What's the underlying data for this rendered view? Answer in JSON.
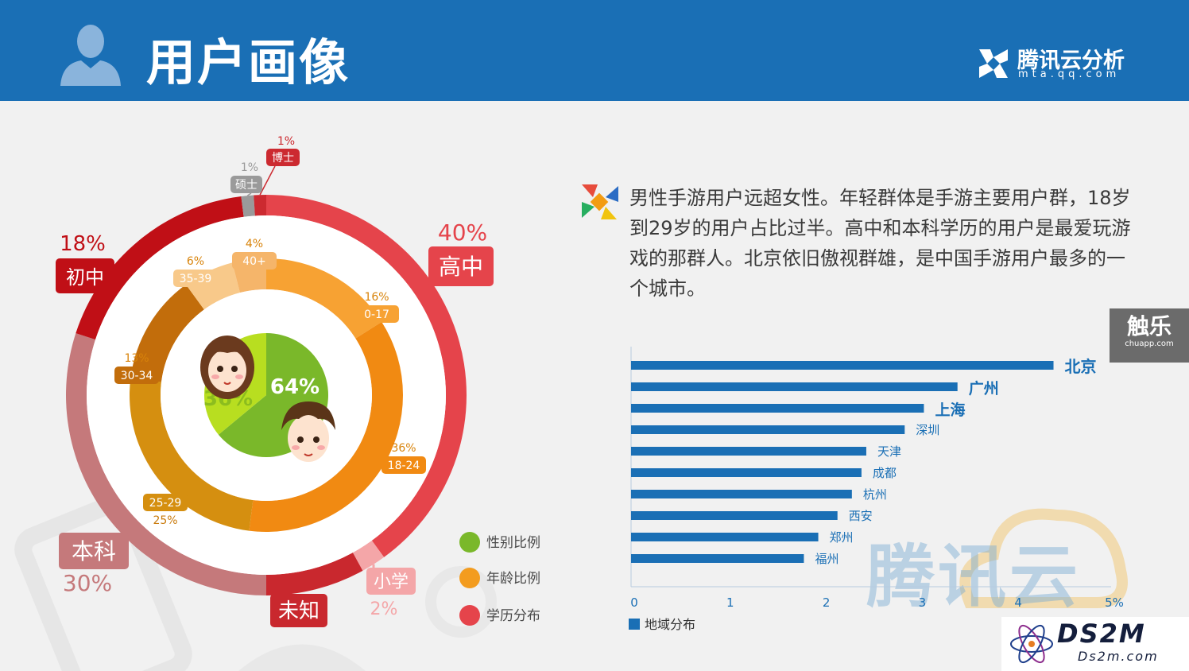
{
  "header": {
    "title": "用户画像",
    "brand_name": "腾讯云分析",
    "brand_url": "mta.qq.com"
  },
  "description": "男性手游用户远超女性。年轻群体是手游主要用户群，18岁到29岁的用户占比过半。高中和本科学历的用户是最爱玩游戏的那群人。北京依旧傲视群雄，是中国手游用户最多的一个城市。",
  "side_badge": {
    "main": "触乐",
    "sub": "chuapp.com"
  },
  "legend": [
    "性别比例",
    "年龄比例",
    "学历分布"
  ],
  "watermarks": {
    "tencent": "腾讯云",
    "ds2m": "DS2M",
    "ds2m_url": "Ds2m.com"
  },
  "colors": {
    "header": "#1a6fb5",
    "bar": "#1a6fb5",
    "gender": "#7ab82a",
    "gender_female": "#b8de20",
    "age": "#f39c1f",
    "education": "#e5444b"
  },
  "chart_data": [
    {
      "type": "pie",
      "name": "性别比例",
      "slices": [
        {
          "label": "",
          "value": 64
        },
        {
          "label": "",
          "value": 36
        }
      ],
      "labels": [
        "64%",
        "36%"
      ]
    },
    {
      "type": "pie",
      "name": "年龄比例",
      "slices": [
        {
          "label": "0-17",
          "value": 16,
          "text": "16%"
        },
        {
          "label": "18-24",
          "value": 36,
          "text": "36%"
        },
        {
          "label": "25-29",
          "value": 25,
          "text": "25%"
        },
        {
          "label": "30-34",
          "value": 13,
          "text": "13%"
        },
        {
          "label": "35-39",
          "value": 6,
          "text": "6%"
        },
        {
          "label": "40+",
          "value": 4,
          "text": "4%"
        }
      ]
    },
    {
      "type": "pie",
      "name": "学历分布",
      "slices": [
        {
          "label": "高中",
          "value": 40,
          "text": "40%"
        },
        {
          "label": "小学",
          "value": 2,
          "text": "2%"
        },
        {
          "label": "未知",
          "value": 8,
          "text": ""
        },
        {
          "label": "本科",
          "value": 30,
          "text": "30%"
        },
        {
          "label": "初中",
          "value": 18,
          "text": "18%"
        },
        {
          "label": "硕士",
          "value": 1,
          "text": "1%"
        },
        {
          "label": "博士",
          "value": 1,
          "text": "1%"
        }
      ]
    },
    {
      "type": "bar",
      "orientation": "horizontal",
      "categories": [
        "北京",
        "广州",
        "上海",
        "深圳",
        "天津",
        "成都",
        "杭州",
        "西安",
        "郑州",
        "福州"
      ],
      "values": [
        4.4,
        3.4,
        3.05,
        2.85,
        2.45,
        2.4,
        2.3,
        2.15,
        1.95,
        1.8
      ],
      "xlim": [
        0,
        5
      ],
      "xticks": [
        "0",
        "1",
        "2",
        "3",
        "4",
        "5%"
      ],
      "legend": "地域分布"
    }
  ]
}
